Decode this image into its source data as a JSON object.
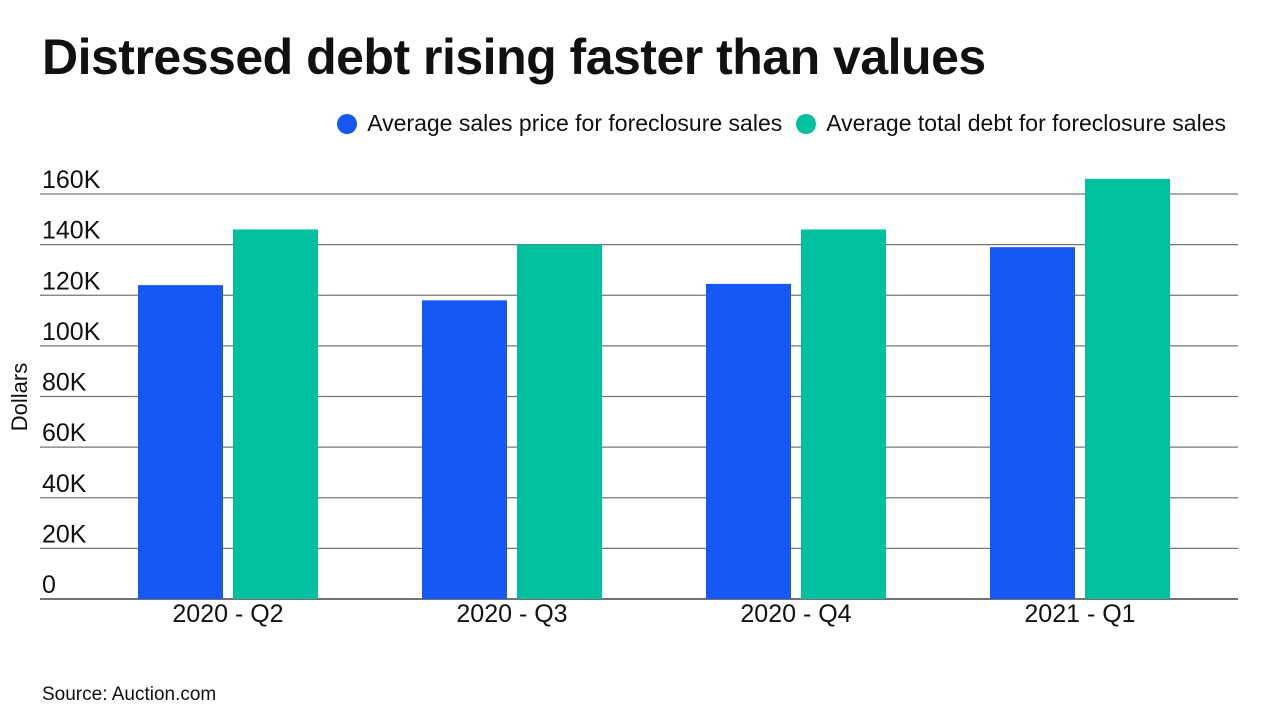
{
  "chart_data": {
    "type": "bar",
    "title": "Distressed debt rising faster than values",
    "categories": [
      "2020 - Q2",
      "2020 - Q3",
      "2020 - Q4",
      "2021 - Q1"
    ],
    "series": [
      {
        "name": "Average sales price for foreclosure sales",
        "color": "#1558F5",
        "values": [
          124000,
          118000,
          124500,
          139000
        ]
      },
      {
        "name": "Average total debt for foreclosure sales",
        "color": "#00C19D",
        "values": [
          146000,
          140000,
          146000,
          166000
        ]
      }
    ],
    "xlabel": "",
    "ylabel": "Dollars",
    "ylim": [
      0,
      160000
    ],
    "yticks": [
      0,
      20000,
      40000,
      60000,
      80000,
      100000,
      120000,
      140000,
      160000
    ],
    "ytick_labels": [
      "0",
      "20K",
      "40K",
      "60K",
      "80K",
      "100K",
      "120K",
      "140K",
      "160K"
    ],
    "grid": true,
    "legend_position": "top-right",
    "source": "Source: Auction.com"
  }
}
